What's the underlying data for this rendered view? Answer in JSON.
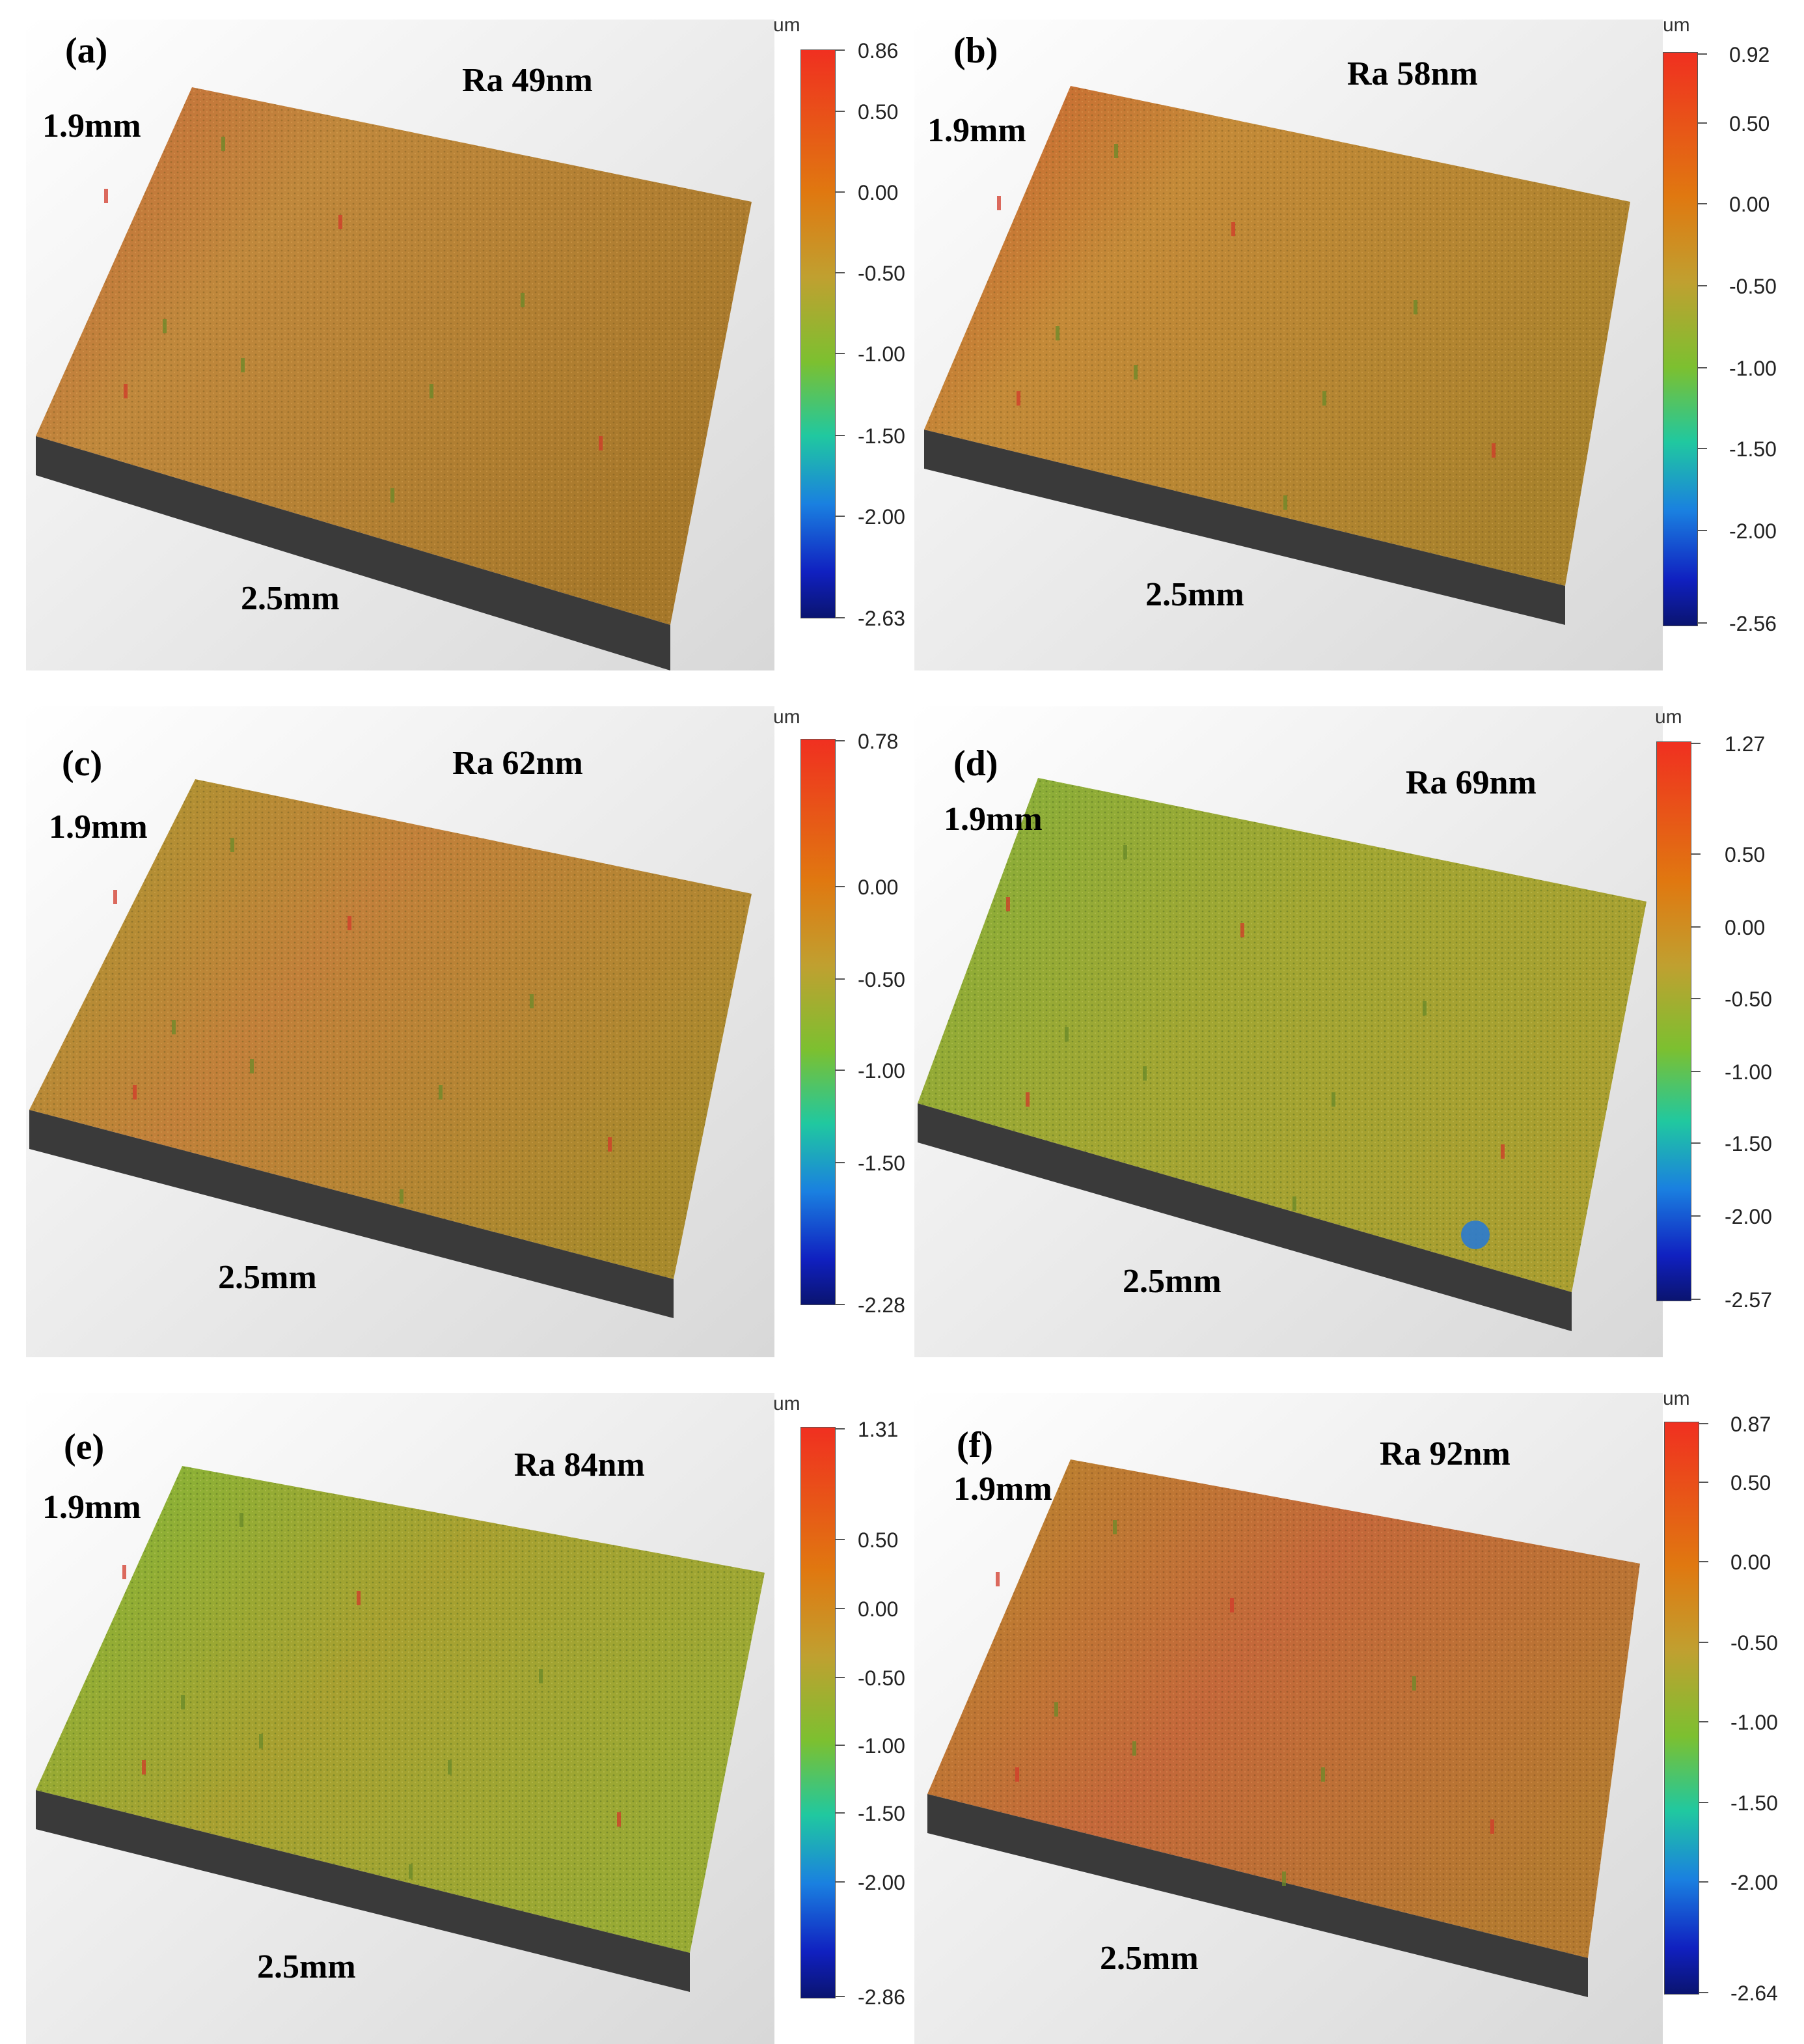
{
  "panels": [
    {
      "letter": "(a)",
      "ra": "Ra 49nm",
      "y_dim": "1.9mm",
      "x_dim": "2.5mm",
      "unit": "um",
      "ticks": [
        "0.86",
        "0.50",
        "0.00",
        "-0.50",
        "-1.00",
        "-1.50",
        "-2.00",
        "-2.63"
      ],
      "surface_color_far": "#b9892c",
      "surface_color_near": "#c9853a",
      "surface_color_left": "#c56a33"
    },
    {
      "letter": "(b)",
      "ra": "Ra 58nm",
      "y_dim": "1.9mm",
      "x_dim": "2.5mm",
      "unit": "um",
      "ticks": [
        "0.92",
        "0.50",
        "0.00",
        "-0.50",
        "-1.00",
        "-1.50",
        "-2.00",
        "-2.56"
      ],
      "surface_color_far": "#b88a2c",
      "surface_color_near": "#c48a38",
      "surface_color_left": "#cc6430"
    },
    {
      "letter": "(c)",
      "ra": "Ra 62nm",
      "y_dim": "1.9mm",
      "x_dim": "2.5mm",
      "unit": "um",
      "ticks": [
        "0.78",
        "0.00",
        "-0.50",
        "-1.00",
        "-1.50",
        "-2.28"
      ],
      "surface_color_far": "#a8982c",
      "surface_color_near": "#c08a3a",
      "surface_color_left": "#a88e2c"
    },
    {
      "letter": "(d)",
      "ra": "Ra 69nm",
      "y_dim": "1.9mm",
      "x_dim": "2.5mm",
      "unit": "um",
      "ticks": [
        "1.27",
        "0.50",
        "0.00",
        "-0.50",
        "-1.00",
        "-1.50",
        "-2.00",
        "-2.57"
      ],
      "surface_color_far": "#8eac38",
      "surface_color_near": "#a8a030",
      "surface_color_left": "#98a834"
    },
    {
      "letter": "(e)",
      "ra": "Ra 84nm",
      "y_dim": "1.9mm",
      "x_dim": "2.5mm",
      "unit": "um",
      "ticks": [
        "1.31",
        "0.50",
        "0.00",
        "-0.50",
        "-1.00",
        "-1.50",
        "-2.00",
        "-2.86"
      ],
      "surface_color_far": "#92ac34",
      "surface_color_near": "#a6a034",
      "surface_color_left": "#88b434"
    },
    {
      "letter": "(f)",
      "ra": "Ra 92nm",
      "y_dim": "1.9mm",
      "x_dim": "2.5mm",
      "unit": "um",
      "ticks": [
        "0.87",
        "0.50",
        "0.00",
        "-0.50",
        "-1.00",
        "-1.50",
        "-2.00",
        "-2.64"
      ],
      "surface_color_far": "#b4802c",
      "surface_color_near": "#c2703a",
      "surface_color_left": "#c07036"
    }
  ]
}
